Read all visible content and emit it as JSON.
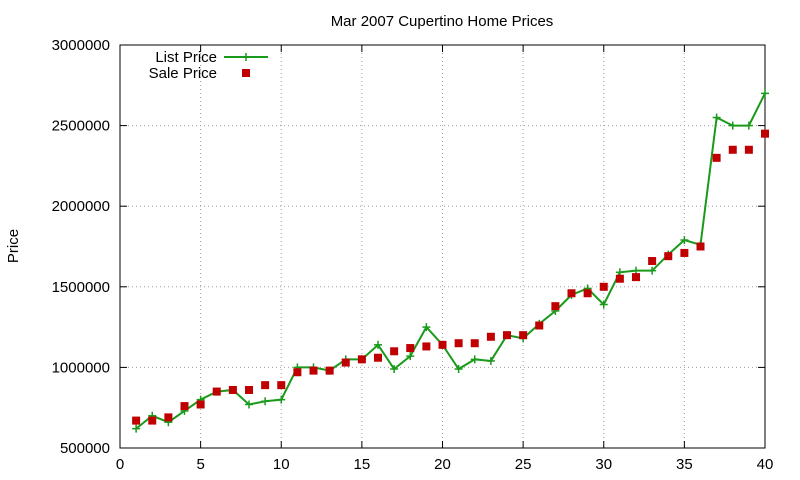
{
  "chart_data": {
    "type": "line",
    "title": "Mar 2007 Cupertino Home Prices",
    "xlabel": "",
    "ylabel": "Price",
    "xlim": [
      0,
      40
    ],
    "ylim": [
      500000,
      3000000
    ],
    "xticks": [
      0,
      5,
      10,
      15,
      20,
      25,
      30,
      35,
      40
    ],
    "yticks": [
      500000,
      1000000,
      1500000,
      2000000,
      2500000,
      3000000
    ],
    "grid": true,
    "legend_position": "top-left",
    "series": [
      {
        "name": "List Price",
        "style": "linespoints",
        "marker": "plus",
        "color": "#1a9a1a",
        "x": [
          1,
          2,
          3,
          4,
          5,
          6,
          7,
          8,
          9,
          10,
          11,
          12,
          13,
          14,
          15,
          16,
          17,
          18,
          19,
          20,
          21,
          22,
          23,
          24,
          25,
          26,
          27,
          28,
          29,
          30,
          31,
          32,
          33,
          34,
          35,
          36,
          37,
          38,
          39,
          40
        ],
        "y": [
          620000,
          700000,
          660000,
          730000,
          800000,
          850000,
          860000,
          770000,
          790000,
          800000,
          1000000,
          1000000,
          980000,
          1050000,
          1050000,
          1140000,
          990000,
          1070000,
          1250000,
          1140000,
          990000,
          1050000,
          1040000,
          1200000,
          1180000,
          1270000,
          1350000,
          1450000,
          1490000,
          1390000,
          1590000,
          1600000,
          1600000,
          1700000,
          1790000,
          1760000,
          2550000,
          2500000,
          2500000,
          2700000
        ]
      },
      {
        "name": "Sale Price",
        "style": "points",
        "marker": "square",
        "color": "#c00000",
        "x": [
          1,
          2,
          3,
          4,
          5,
          6,
          7,
          8,
          9,
          10,
          11,
          12,
          13,
          14,
          15,
          16,
          17,
          18,
          19,
          20,
          21,
          22,
          23,
          24,
          25,
          26,
          27,
          28,
          29,
          30,
          31,
          32,
          33,
          34,
          35,
          36,
          37,
          38,
          39,
          40
        ],
        "y": [
          670000,
          670000,
          690000,
          760000,
          770000,
          850000,
          860000,
          860000,
          890000,
          890000,
          970000,
          980000,
          980000,
          1030000,
          1050000,
          1060000,
          1100000,
          1120000,
          1130000,
          1140000,
          1150000,
          1150000,
          1190000,
          1200000,
          1200000,
          1260000,
          1380000,
          1460000,
          1460000,
          1500000,
          1550000,
          1560000,
          1660000,
          1690000,
          1710000,
          1750000,
          2300000,
          2350000,
          2350000,
          2450000
        ]
      }
    ]
  }
}
